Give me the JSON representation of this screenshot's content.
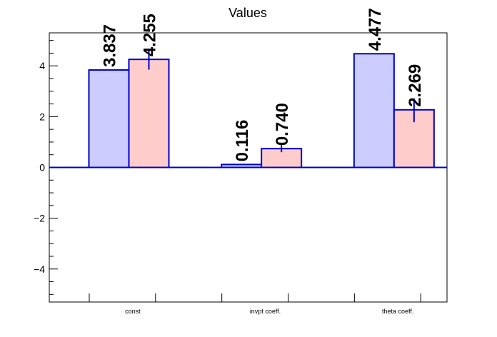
{
  "chart_data": {
    "type": "bar",
    "title": "Values",
    "xlabel": "",
    "ylabel": "",
    "ylim": [
      -5.3,
      5.3
    ],
    "yticks": [
      -4,
      -2,
      0,
      2,
      4
    ],
    "ytick_labels": [
      "−4",
      "−2",
      "0",
      "2",
      "4"
    ],
    "categories": [
      "const",
      "invpt coeff.",
      "theta coeff."
    ],
    "series": [
      {
        "color": "#ccccff",
        "edge_color": "#0000cc",
        "values": [
          3.837,
          0.116,
          4.477
        ],
        "labels": [
          "3.837",
          "0.116",
          "4.477"
        ]
      },
      {
        "color": "#ffcccc",
        "edge_color": "#0000cc",
        "values": [
          4.255,
          0.74,
          2.269
        ],
        "labels": [
          "4.255",
          "0.740",
          "2.269"
        ],
        "error_bars": [
          {
            "low": 3.85,
            "high": 4.65
          },
          {
            "low": 0.6,
            "high": 0.88
          },
          {
            "low": 1.78,
            "high": 2.72
          }
        ]
      }
    ],
    "grid": false,
    "legend": "none"
  }
}
